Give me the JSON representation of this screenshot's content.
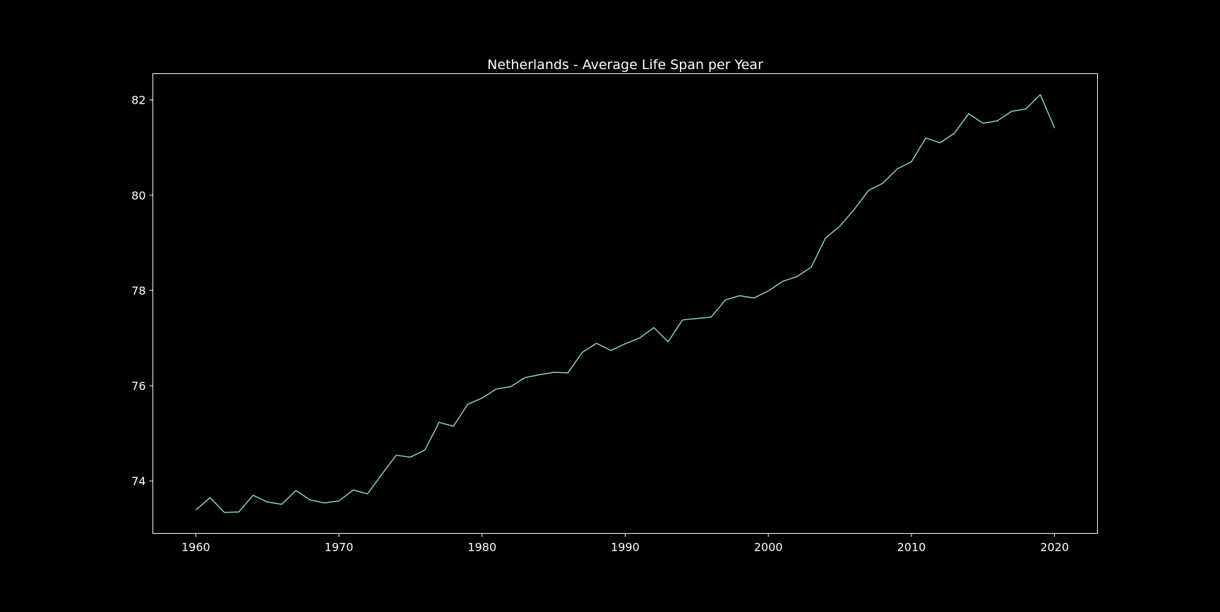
{
  "chart_data": {
    "type": "line",
    "title": "Netherlands - Average Life Span per Year",
    "xlabel": "",
    "ylabel": "",
    "xlim": [
      1957,
      2023
    ],
    "ylim": [
      72.9,
      82.55
    ],
    "xticks": [
      1960,
      1970,
      1980,
      1990,
      2000,
      2010,
      2020
    ],
    "yticks": [
      74,
      76,
      78,
      80,
      82
    ],
    "grid": false,
    "legend": "none",
    "colors": {
      "background": "#000000",
      "axes": "#ffffff",
      "text": "#ffffff",
      "line": "#8dd3c7"
    },
    "series": [
      {
        "x": [
          1960,
          1961,
          1962,
          1963,
          1964,
          1965,
          1966,
          1967,
          1968,
          1969,
          1970,
          1971,
          1972,
          1973,
          1974,
          1975,
          1976,
          1977,
          1978,
          1979,
          1980,
          1981,
          1982,
          1983,
          1984,
          1985,
          1986,
          1987,
          1988,
          1989,
          1990,
          1991,
          1992,
          1993,
          1994,
          1995,
          1996,
          1997,
          1998,
          1999,
          2000,
          2001,
          2002,
          2003,
          2004,
          2005,
          2006,
          2007,
          2008,
          2009,
          2010,
          2011,
          2012,
          2013,
          2014,
          2015,
          2016,
          2017,
          2018,
          2019,
          2020
        ],
        "values": [
          73.39,
          73.65,
          73.34,
          73.35,
          73.7,
          73.56,
          73.51,
          73.8,
          73.6,
          73.54,
          73.58,
          73.81,
          73.73,
          74.14,
          74.54,
          74.5,
          74.65,
          75.23,
          75.15,
          75.61,
          75.74,
          75.93,
          75.98,
          76.17,
          76.23,
          76.28,
          76.27,
          76.7,
          76.89,
          76.74,
          76.88,
          77.0,
          77.22,
          76.92,
          77.38,
          77.41,
          77.44,
          77.8,
          77.89,
          77.84,
          77.99,
          78.19,
          78.29,
          78.49,
          79.1,
          79.35,
          79.7,
          80.1,
          80.25,
          80.55,
          80.7,
          81.2,
          81.1,
          81.3,
          81.71,
          81.51,
          81.56,
          81.76,
          81.81,
          82.11,
          81.41
        ]
      }
    ]
  }
}
